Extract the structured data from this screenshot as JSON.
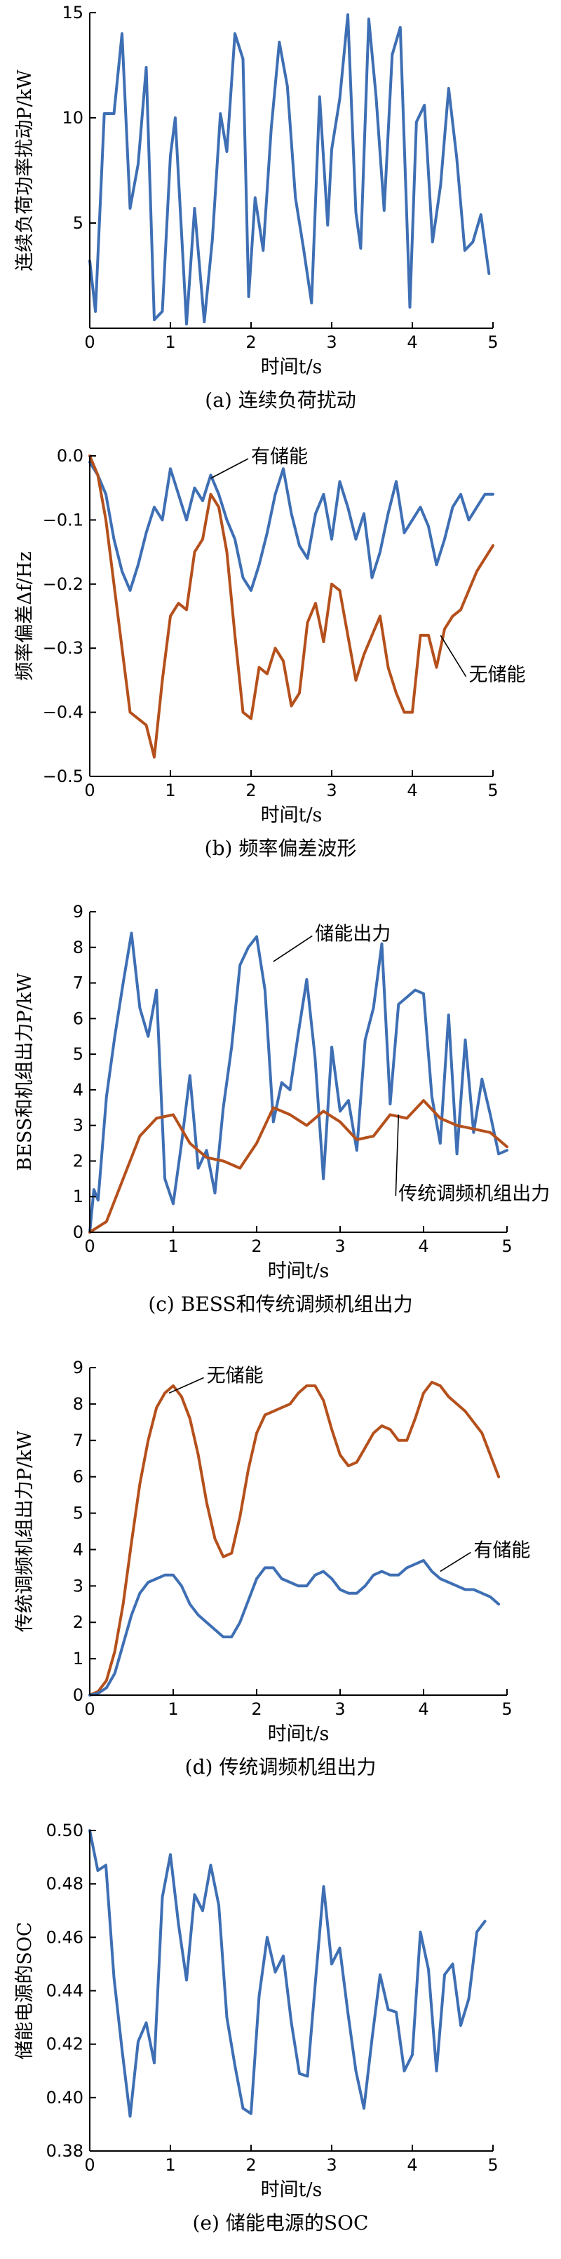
{
  "colors": {
    "blue": "#3e6fb4",
    "orange": "#b5501c"
  },
  "chart_data": [
    {
      "type": "line",
      "caption": "(a) 连续负荷扰动",
      "xlabel": "时间t/s",
      "ylabel": "连续负荷功率扰动P/kW",
      "xlim": [
        0,
        5
      ],
      "ylim": [
        0,
        15
      ],
      "xticks": [
        0,
        1,
        2,
        3,
        4,
        5
      ],
      "yticks": [
        5,
        10,
        15
      ],
      "annotations": [],
      "series": [
        {
          "color": "blue",
          "x": [
            0,
            0.07,
            0.18,
            0.3,
            0.4,
            0.5,
            0.6,
            0.7,
            0.8,
            0.9,
            1.0,
            1.06,
            1.2,
            1.3,
            1.42,
            1.52,
            1.62,
            1.7,
            1.8,
            1.9,
            1.97,
            2.05,
            2.15,
            2.25,
            2.35,
            2.45,
            2.55,
            2.65,
            2.75,
            2.85,
            2.95,
            3.0,
            3.1,
            3.2,
            3.3,
            3.36,
            3.46,
            3.55,
            3.65,
            3.75,
            3.85,
            3.97,
            4.05,
            4.15,
            4.25,
            4.35,
            4.45,
            4.55,
            4.65,
            4.75,
            4.85,
            4.95
          ],
          "y": [
            3.2,
            0.8,
            10.2,
            10.2,
            14,
            5.7,
            7.8,
            12.4,
            0.4,
            0.8,
            8.2,
            10,
            0.2,
            5.7,
            0.3,
            4.2,
            10.2,
            8.4,
            14,
            12.8,
            1.5,
            6.2,
            3.7,
            9.5,
            13.6,
            11.5,
            6.2,
            3.8,
            1.2,
            11,
            4.9,
            8.5,
            10.9,
            14.9,
            5.5,
            3.8,
            14.7,
            11,
            5.6,
            13,
            14.3,
            1,
            9.8,
            10.6,
            4.1,
            6.8,
            11.4,
            8.1,
            3.7,
            4.1,
            5.4,
            2.6
          ]
        }
      ]
    },
    {
      "type": "line",
      "caption": "(b) 频率偏差波形",
      "xlabel": "时间t/s",
      "ylabel": "频率偏差Δf/Hz",
      "xlim": [
        0,
        5
      ],
      "ylim": [
        -0.5,
        0
      ],
      "xticks": [
        0,
        1,
        2,
        3,
        4,
        5
      ],
      "yticks": [
        -0.5,
        -0.4,
        -0.3,
        -0.2,
        -0.1,
        0
      ],
      "annotations": [
        {
          "text": "有储能",
          "at": [
            1.5,
            -0.035
          ],
          "label_at": [
            2.0,
            0.0
          ]
        },
        {
          "text": "无储能",
          "at": [
            4.35,
            -0.28
          ],
          "label_at": [
            4.7,
            -0.34
          ]
        }
      ],
      "series": [
        {
          "color": "blue",
          "name": "有储能",
          "x": [
            0,
            0.1,
            0.2,
            0.3,
            0.4,
            0.5,
            0.6,
            0.7,
            0.8,
            0.9,
            1.0,
            1.1,
            1.2,
            1.3,
            1.4,
            1.5,
            1.6,
            1.7,
            1.8,
            1.9,
            2.0,
            2.1,
            2.2,
            2.3,
            2.4,
            2.5,
            2.6,
            2.7,
            2.8,
            2.9,
            3.0,
            3.1,
            3.2,
            3.3,
            3.4,
            3.5,
            3.6,
            3.7,
            3.8,
            3.9,
            4.0,
            4.1,
            4.2,
            4.3,
            4.4,
            4.5,
            4.6,
            4.7,
            4.8,
            4.9,
            5.0
          ],
          "y": [
            -0.01,
            -0.03,
            -0.06,
            -0.13,
            -0.18,
            -0.21,
            -0.17,
            -0.12,
            -0.08,
            -0.1,
            -0.02,
            -0.06,
            -0.1,
            -0.05,
            -0.07,
            -0.03,
            -0.06,
            -0.1,
            -0.13,
            -0.19,
            -0.21,
            -0.17,
            -0.12,
            -0.06,
            -0.02,
            -0.09,
            -0.14,
            -0.16,
            -0.09,
            -0.06,
            -0.13,
            -0.04,
            -0.08,
            -0.13,
            -0.09,
            -0.19,
            -0.15,
            -0.09,
            -0.04,
            -0.12,
            -0.1,
            -0.08,
            -0.11,
            -0.17,
            -0.13,
            -0.08,
            -0.06,
            -0.1,
            -0.08,
            -0.06,
            -0.06
          ]
        },
        {
          "color": "orange",
          "name": "无储能",
          "x": [
            0,
            0.1,
            0.2,
            0.3,
            0.4,
            0.5,
            0.6,
            0.7,
            0.8,
            0.9,
            1.0,
            1.1,
            1.2,
            1.3,
            1.4,
            1.5,
            1.6,
            1.7,
            1.8,
            1.9,
            2.0,
            2.1,
            2.2,
            2.3,
            2.4,
            2.5,
            2.6,
            2.7,
            2.8,
            2.9,
            3.0,
            3.1,
            3.2,
            3.3,
            3.4,
            3.5,
            3.6,
            3.7,
            3.8,
            3.9,
            4.0,
            4.1,
            4.2,
            4.3,
            4.4,
            4.5,
            4.6,
            4.7,
            4.8,
            4.9,
            5.0
          ],
          "y": [
            0,
            -0.03,
            -0.1,
            -0.2,
            -0.3,
            -0.4,
            -0.41,
            -0.42,
            -0.47,
            -0.35,
            -0.25,
            -0.23,
            -0.24,
            -0.15,
            -0.13,
            -0.06,
            -0.08,
            -0.15,
            -0.28,
            -0.4,
            -0.41,
            -0.33,
            -0.34,
            -0.3,
            -0.32,
            -0.39,
            -0.37,
            -0.26,
            -0.23,
            -0.29,
            -0.2,
            -0.21,
            -0.28,
            -0.35,
            -0.31,
            -0.28,
            -0.25,
            -0.33,
            -0.37,
            -0.4,
            -0.4,
            -0.28,
            -0.28,
            -0.33,
            -0.27,
            -0.25,
            -0.24,
            -0.21,
            -0.18,
            -0.16,
            -0.14
          ]
        }
      ]
    },
    {
      "type": "line",
      "caption": "(c) BESS和传统调频机组出力",
      "xlabel": "时间t/s",
      "ylabel": "BESS和机组出力P/kW",
      "xlim": [
        0,
        5
      ],
      "ylim": [
        0,
        9
      ],
      "xticks": [
        0,
        1,
        2,
        3,
        4,
        5
      ],
      "yticks": [
        0,
        1,
        2,
        3,
        4,
        5,
        6,
        7,
        8,
        9
      ],
      "annotations": [
        {
          "text": "储能出力",
          "at": [
            2.2,
            7.6
          ],
          "label_at": [
            2.7,
            8.4
          ]
        },
        {
          "text": "传统调频机组出力",
          "at": [
            3.7,
            3.3
          ],
          "label_at": [
            3.7,
            1.1
          ]
        }
      ],
      "series": [
        {
          "color": "blue",
          "name": "储能出力",
          "x": [
            0,
            0.05,
            0.1,
            0.2,
            0.3,
            0.4,
            0.5,
            0.6,
            0.7,
            0.8,
            0.9,
            1.0,
            1.1,
            1.2,
            1.3,
            1.4,
            1.5,
            1.6,
            1.7,
            1.8,
            1.9,
            2.0,
            2.1,
            2.2,
            2.3,
            2.4,
            2.5,
            2.6,
            2.7,
            2.8,
            2.9,
            3.0,
            3.1,
            3.2,
            3.3,
            3.4,
            3.5,
            3.6,
            3.7,
            3.8,
            3.9,
            4.0,
            4.1,
            4.2,
            4.3,
            4.4,
            4.5,
            4.6,
            4.7,
            4.8,
            4.9,
            5.0
          ],
          "y": [
            0,
            1.2,
            0.9,
            3.8,
            5.5,
            7,
            8.4,
            6.3,
            5.5,
            6.8,
            1.5,
            0.8,
            2.5,
            4.4,
            1.8,
            2.3,
            1.1,
            3.5,
            5.2,
            7.5,
            8,
            8.3,
            6.8,
            3.1,
            4.2,
            4,
            5.6,
            7.1,
            4.9,
            1.5,
            5.2,
            3.4,
            3.7,
            2.3,
            5.4,
            6.3,
            8.1,
            3.6,
            6.4,
            6.6,
            6.8,
            6.7,
            3.8,
            2.5,
            6.1,
            2.2,
            5.4,
            2.8,
            4.3,
            3.3,
            2.2,
            2.3
          ]
        },
        {
          "color": "orange",
          "name": "传统调频机组出力",
          "x": [
            0,
            0.2,
            0.4,
            0.6,
            0.8,
            1.0,
            1.2,
            1.4,
            1.6,
            1.8,
            2.0,
            2.2,
            2.4,
            2.6,
            2.8,
            3.0,
            3.2,
            3.4,
            3.6,
            3.8,
            4.0,
            4.2,
            4.4,
            4.6,
            4.8,
            5.0
          ],
          "y": [
            0,
            0.3,
            1.5,
            2.7,
            3.2,
            3.3,
            2.5,
            2.1,
            2.0,
            1.8,
            2.5,
            3.5,
            3.3,
            3.0,
            3.4,
            3.1,
            2.6,
            2.7,
            3.3,
            3.2,
            3.7,
            3.2,
            3.0,
            2.9,
            2.8,
            2.4
          ]
        }
      ]
    },
    {
      "type": "line",
      "caption": "(d) 传统调频机组出力",
      "xlabel": "时间t/s",
      "ylabel": "传统调频机组出力P/kW",
      "xlim": [
        0,
        5
      ],
      "ylim": [
        0,
        9
      ],
      "xticks": [
        0,
        1,
        2,
        3,
        4,
        5
      ],
      "yticks": [
        0,
        1,
        2,
        3,
        4,
        5,
        6,
        7,
        8,
        9
      ],
      "annotations": [
        {
          "text": "无储能",
          "at": [
            0.95,
            8.3
          ],
          "label_at": [
            1.4,
            8.8
          ]
        },
        {
          "text": "有储能",
          "at": [
            4.2,
            3.4
          ],
          "label_at": [
            4.6,
            4.0
          ]
        }
      ],
      "series": [
        {
          "color": "orange",
          "name": "无储能",
          "x": [
            0,
            0.1,
            0.2,
            0.3,
            0.4,
            0.5,
            0.6,
            0.7,
            0.8,
            0.9,
            1.0,
            1.1,
            1.2,
            1.3,
            1.4,
            1.5,
            1.6,
            1.7,
            1.8,
            1.9,
            2.0,
            2.1,
            2.2,
            2.3,
            2.4,
            2.5,
            2.6,
            2.7,
            2.8,
            2.9,
            3.0,
            3.1,
            3.2,
            3.3,
            3.4,
            3.5,
            3.6,
            3.7,
            3.8,
            3.9,
            4.0,
            4.1,
            4.2,
            4.3,
            4.4,
            4.5,
            4.6,
            4.7,
            4.8,
            4.9
          ],
          "y": [
            0,
            0.1,
            0.4,
            1.2,
            2.5,
            4.2,
            5.8,
            7.0,
            7.9,
            8.3,
            8.5,
            8.2,
            7.6,
            6.6,
            5.3,
            4.3,
            3.8,
            3.9,
            4.9,
            6.2,
            7.2,
            7.7,
            7.8,
            7.9,
            8.0,
            8.3,
            8.5,
            8.5,
            8.1,
            7.3,
            6.6,
            6.3,
            6.4,
            6.8,
            7.2,
            7.4,
            7.3,
            7.0,
            7.0,
            7.6,
            8.3,
            8.6,
            8.5,
            8.2,
            8.0,
            7.8,
            7.5,
            7.2,
            6.6,
            6.0
          ]
        },
        {
          "color": "blue",
          "name": "有储能",
          "x": [
            0,
            0.1,
            0.2,
            0.3,
            0.4,
            0.5,
            0.6,
            0.7,
            0.8,
            0.9,
            1.0,
            1.1,
            1.2,
            1.3,
            1.4,
            1.5,
            1.6,
            1.7,
            1.8,
            1.9,
            2.0,
            2.1,
            2.2,
            2.3,
            2.4,
            2.5,
            2.6,
            2.7,
            2.8,
            2.9,
            3.0,
            3.1,
            3.2,
            3.3,
            3.4,
            3.5,
            3.6,
            3.7,
            3.8,
            3.9,
            4.0,
            4.1,
            4.2,
            4.3,
            4.4,
            4.5,
            4.6,
            4.7,
            4.8,
            4.9
          ],
          "y": [
            0,
            0.05,
            0.2,
            0.6,
            1.4,
            2.2,
            2.8,
            3.1,
            3.2,
            3.3,
            3.3,
            3.0,
            2.5,
            2.2,
            2.0,
            1.8,
            1.6,
            1.6,
            2.0,
            2.6,
            3.2,
            3.5,
            3.5,
            3.2,
            3.1,
            3.0,
            3.0,
            3.3,
            3.4,
            3.2,
            2.9,
            2.8,
            2.8,
            3.0,
            3.3,
            3.4,
            3.3,
            3.3,
            3.5,
            3.6,
            3.7,
            3.4,
            3.2,
            3.1,
            3.0,
            2.9,
            2.9,
            2.8,
            2.7,
            2.5
          ]
        }
      ]
    },
    {
      "type": "line",
      "caption": "(e) 储能电源的SOC",
      "xlabel": "时间t/s",
      "ylabel": "储能电源的SOC",
      "xlim": [
        0,
        5
      ],
      "ylim": [
        0.38,
        0.5
      ],
      "xticks": [
        0,
        1,
        2,
        3,
        4,
        5
      ],
      "yticks": [
        0.38,
        0.4,
        0.42,
        0.44,
        0.46,
        0.48,
        0.5
      ],
      "annotations": [],
      "series": [
        {
          "color": "blue",
          "x": [
            0,
            0.1,
            0.2,
            0.3,
            0.4,
            0.5,
            0.6,
            0.7,
            0.8,
            0.9,
            1.0,
            1.1,
            1.2,
            1.3,
            1.4,
            1.5,
            1.6,
            1.7,
            1.8,
            1.9,
            2.0,
            2.1,
            2.2,
            2.3,
            2.4,
            2.5,
            2.6,
            2.7,
            2.8,
            2.9,
            3.0,
            3.1,
            3.2,
            3.3,
            3.4,
            3.5,
            3.6,
            3.7,
            3.8,
            3.9,
            4.0,
            4.1,
            4.2,
            4.3,
            4.4,
            4.5,
            4.6,
            4.7,
            4.8,
            4.9
          ],
          "y": [
            0.5,
            0.485,
            0.487,
            0.445,
            0.418,
            0.393,
            0.421,
            0.428,
            0.413,
            0.475,
            0.491,
            0.465,
            0.444,
            0.476,
            0.47,
            0.487,
            0.472,
            0.43,
            0.412,
            0.396,
            0.394,
            0.438,
            0.46,
            0.447,
            0.453,
            0.428,
            0.409,
            0.408,
            0.444,
            0.479,
            0.45,
            0.456,
            0.432,
            0.41,
            0.396,
            0.422,
            0.446,
            0.433,
            0.432,
            0.41,
            0.416,
            0.462,
            0.448,
            0.41,
            0.446,
            0.45,
            0.427,
            0.437,
            0.462,
            0.466
          ]
        }
      ]
    }
  ]
}
